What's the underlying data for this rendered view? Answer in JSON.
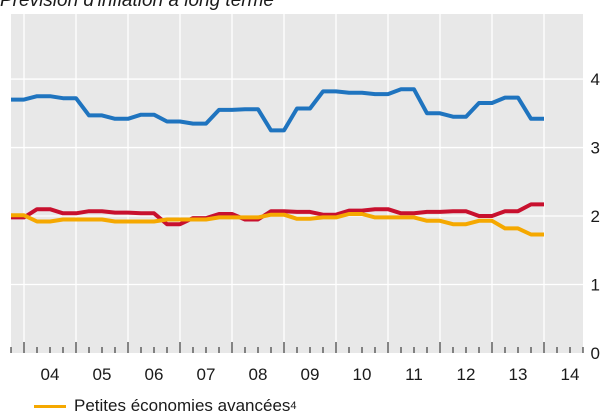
{
  "chart_data": {
    "type": "line",
    "title": "Prévision d'inflation à long terme",
    "xlabel": "",
    "ylabel": "",
    "x_tick_labels": [
      "04",
      "05",
      "06",
      "07",
      "08",
      "09",
      "10",
      "11",
      "12",
      "13",
      "14"
    ],
    "y_ticks": [
      "0",
      "1",
      "2",
      "3",
      "4"
    ],
    "xlim": [
      2003.75,
      2014.75
    ],
    "ylim": [
      0,
      4.95
    ],
    "grid": true,
    "legend_position": "bottom-left",
    "series": [
      {
        "color": "#1f74bf",
        "x": [
          2003.75,
          2004.0,
          2004.25,
          2004.5,
          2004.75,
          2005.0,
          2005.25,
          2005.5,
          2005.75,
          2006.0,
          2006.25,
          2006.5,
          2006.75,
          2007.0,
          2007.25,
          2007.5,
          2007.75,
          2008.0,
          2008.25,
          2008.5,
          2008.75,
          2009.0,
          2009.25,
          2009.5,
          2009.75,
          2010.0,
          2010.25,
          2010.5,
          2010.75,
          2011.0,
          2011.25,
          2011.5,
          2011.75,
          2012.0,
          2012.25,
          2012.5,
          2012.75,
          2013.0,
          2013.25,
          2013.5,
          2013.75,
          2014.0
        ],
        "values": [
          3.7,
          3.7,
          3.75,
          3.75,
          3.72,
          3.72,
          3.47,
          3.47,
          3.42,
          3.42,
          3.48,
          3.48,
          3.38,
          3.38,
          3.35,
          3.35,
          3.55,
          3.55,
          3.56,
          3.56,
          3.25,
          3.25,
          3.57,
          3.57,
          3.82,
          3.82,
          3.8,
          3.8,
          3.78,
          3.78,
          3.85,
          3.85,
          3.5,
          3.5,
          3.45,
          3.45,
          3.65,
          3.65,
          3.73,
          3.73,
          3.42,
          3.42
        ]
      },
      {
        "color": "#c8102e",
        "x": [
          2003.75,
          2004.0,
          2004.25,
          2004.5,
          2004.75,
          2005.0,
          2005.25,
          2005.5,
          2005.75,
          2006.0,
          2006.25,
          2006.5,
          2006.75,
          2007.0,
          2007.25,
          2007.5,
          2007.75,
          2008.0,
          2008.25,
          2008.5,
          2008.75,
          2009.0,
          2009.25,
          2009.5,
          2009.75,
          2010.0,
          2010.25,
          2010.5,
          2010.75,
          2011.0,
          2011.25,
          2011.5,
          2011.75,
          2012.0,
          2012.25,
          2012.5,
          2012.75,
          2013.0,
          2013.25,
          2013.5,
          2013.75,
          2014.0
        ],
        "values": [
          1.98,
          1.98,
          2.1,
          2.1,
          2.04,
          2.04,
          2.07,
          2.07,
          2.05,
          2.05,
          2.04,
          2.04,
          1.88,
          1.88,
          1.97,
          1.97,
          2.03,
          2.03,
          1.95,
          1.95,
          2.07,
          2.07,
          2.06,
          2.06,
          2.02,
          2.02,
          2.08,
          2.08,
          2.1,
          2.1,
          2.04,
          2.04,
          2.06,
          2.06,
          2.07,
          2.07,
          2.0,
          2.0,
          2.07,
          2.07,
          2.17,
          2.17
        ]
      },
      {
        "name": "Petites économies avancées",
        "color": "#f5a800",
        "x": [
          2003.75,
          2004.0,
          2004.25,
          2004.5,
          2004.75,
          2005.0,
          2005.25,
          2005.5,
          2005.75,
          2006.0,
          2006.25,
          2006.5,
          2006.75,
          2007.0,
          2007.25,
          2007.5,
          2007.75,
          2008.0,
          2008.25,
          2008.5,
          2008.75,
          2009.0,
          2009.25,
          2009.5,
          2009.75,
          2010.0,
          2010.25,
          2010.5,
          2010.75,
          2011.0,
          2011.25,
          2011.5,
          2011.75,
          2012.0,
          2012.25,
          2012.5,
          2012.75,
          2013.0,
          2013.25,
          2013.5,
          2013.75,
          2014.0
        ],
        "values": [
          2.01,
          2.01,
          1.92,
          1.92,
          1.95,
          1.95,
          1.95,
          1.95,
          1.92,
          1.92,
          1.92,
          1.92,
          1.95,
          1.95,
          1.95,
          1.95,
          1.98,
          1.98,
          1.98,
          1.98,
          2.02,
          2.02,
          1.96,
          1.96,
          1.98,
          1.98,
          2.03,
          2.03,
          1.98,
          1.98,
          1.98,
          1.98,
          1.93,
          1.93,
          1.88,
          1.88,
          1.93,
          1.93,
          1.82,
          1.82,
          1.73,
          1.73
        ]
      }
    ]
  },
  "legend": {
    "label": "Petites économies avancées",
    "note": "4",
    "color": "#f5a800"
  },
  "plot_background": "#e8e8e8"
}
